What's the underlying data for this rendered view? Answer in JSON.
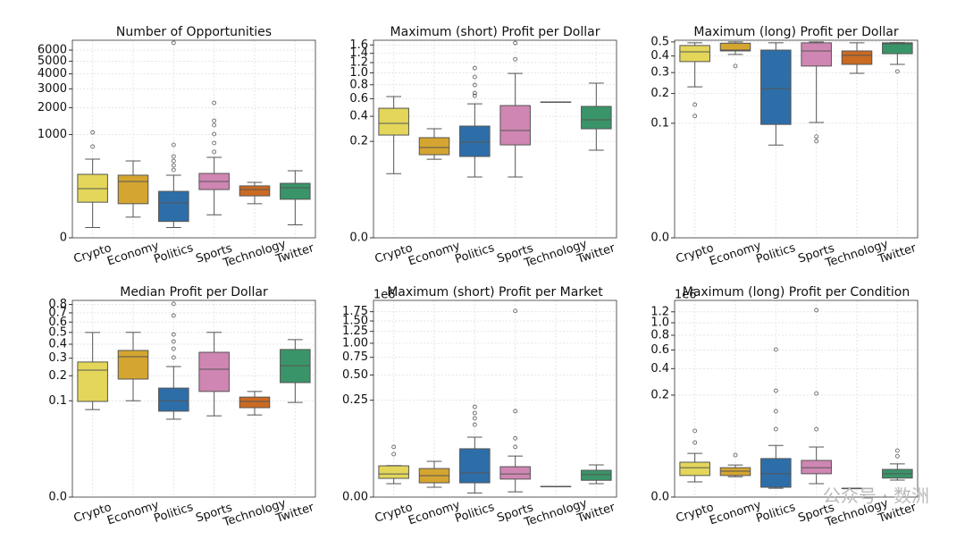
{
  "chart_data": [
    {
      "type": "box",
      "title": "Number of Opportunities",
      "yscale": "cuberoot",
      "grid": true,
      "categories": [
        "Crypto",
        "Economy",
        "Politics",
        "Sports",
        "Technology",
        "Twitter"
      ],
      "colors": [
        "#e3d65a",
        "#d4a530",
        "#2d6ea8",
        "#cf86b2",
        "#cb6a22",
        "#3a9469"
      ],
      "ylim": [
        0,
        7000
      ],
      "yticks": [
        0,
        1000,
        2000,
        3000,
        4000,
        5000,
        6000
      ],
      "boxes": [
        {
          "whislo": 1,
          "q1": 41,
          "med": 108,
          "q3": 232,
          "whishi": 442,
          "fliers": [
            689,
            1064
          ]
        },
        {
          "whislo": 8,
          "q1": 36,
          "med": 162,
          "q3": 223,
          "whishi": 413,
          "fliers": []
        },
        {
          "whislo": 1,
          "q1": 4,
          "med": 39,
          "q3": 91,
          "whishi": 223,
          "fliers": [
            285,
            345,
            413,
            489,
            729,
            6730
          ]
        },
        {
          "whislo": 11,
          "q1": 102,
          "med": 162,
          "q3": 242,
          "whishi": 473,
          "fliers": [
            576,
            773,
            1013,
            1298,
            1459,
            2233
          ]
        },
        {
          "whislo": 36,
          "q1": 67,
          "med": 102,
          "q3": 127,
          "whishi": 155,
          "fliers": []
        },
        {
          "whislo": 2,
          "q1": 52,
          "med": 114,
          "q3": 147,
          "whishi": 274,
          "fliers": []
        }
      ]
    },
    {
      "type": "box",
      "title": "Maximum (short) Profit per Dollar",
      "yscale": "cuberoot",
      "grid": true,
      "categories": [
        "Crypto",
        "Economy",
        "Politics",
        "Sports",
        "Technology",
        "Twitter"
      ],
      "colors": [
        "#e3d65a",
        "#d4a530",
        "#2d6ea8",
        "#cf86b2",
        "#cb6a22",
        "#3a9469"
      ],
      "ylim": [
        0,
        1.72
      ],
      "yticks": [
        {
          "value": 0,
          "label": "0.0"
        },
        0.2,
        0.4,
        0.6,
        0.8,
        {
          "value": 1,
          "label": "1.0"
        },
        1.2,
        1.4,
        1.6
      ],
      "boxes": [
        {
          "whislo": 0.059,
          "q1": 0.242,
          "med": 0.334,
          "q3": 0.485,
          "whishi": 0.628,
          "fliers": []
        },
        {
          "whislo": 0.108,
          "q1": 0.128,
          "med": 0.164,
          "q3": 0.224,
          "whishi": 0.289,
          "fliers": []
        },
        {
          "whislo": 0.05,
          "q1": 0.12,
          "med": 0.195,
          "q3": 0.311,
          "whishi": 0.537,
          "fliers": [
            0.64,
            0.677,
            0.796,
            0.929,
            1.09
          ]
        },
        {
          "whislo": 0.05,
          "q1": 0.179,
          "med": 0.275,
          "q3": 0.516,
          "whishi": 0.991,
          "fliers": [
            1.27,
            1.65
          ]
        },
        {
          "whislo": 0.559,
          "q1": 0.559,
          "med": 0.559,
          "q3": 0.559,
          "whishi": 0.559,
          "fliers": []
        },
        {
          "whislo": 0.15,
          "q1": 0.289,
          "med": 0.366,
          "q3": 0.506,
          "whishi": 0.825,
          "fliers": []
        }
      ]
    },
    {
      "type": "box",
      "title": "Maximum (long) Profit per Dollar",
      "yscale": "cuberoot",
      "grid": true,
      "categories": [
        "Crypto",
        "Economy",
        "Politics",
        "Sports",
        "Technology",
        "Twitter"
      ],
      "colors": [
        "#e3d65a",
        "#d4a530",
        "#2d6ea8",
        "#cf86b2",
        "#cb6a22",
        "#3a9469"
      ],
      "ylim": [
        0,
        0.513
      ],
      "yticks": [
        {
          "value": 0,
          "label": "0.0"
        },
        0.1,
        0.2,
        0.3,
        0.4,
        0.5
      ],
      "boxes": [
        {
          "whislo": 0.229,
          "q1": 0.364,
          "med": 0.428,
          "q3": 0.473,
          "whishi": 0.493,
          "fliers": [
            0.157,
            0.12
          ]
        },
        {
          "whislo": 0.41,
          "q1": 0.434,
          "med": 0.44,
          "q3": 0.49,
          "whishi": 0.5,
          "fliers": [
            0.337
          ]
        },
        {
          "whislo": 0.053,
          "q1": 0.097,
          "med": 0.221,
          "q3": 0.44,
          "whishi": 0.493,
          "fliers": []
        },
        {
          "whislo": 0.102,
          "q1": 0.337,
          "med": 0.434,
          "q3": 0.493,
          "whishi": 0.5,
          "fliers": [
            0.069,
            0.06
          ]
        },
        {
          "whislo": 0.296,
          "q1": 0.347,
          "med": 0.404,
          "q3": 0.434,
          "whishi": 0.493,
          "fliers": []
        },
        {
          "whislo": 0.347,
          "q1": 0.415,
          "med": 0.486,
          "q3": 0.493,
          "whishi": 0.495,
          "fliers": [
            0.306
          ]
        }
      ]
    },
    {
      "type": "box",
      "title": "Median Profit per Dollar",
      "yscale": "cuberoot",
      "grid": true,
      "categories": [
        "Crypto",
        "Economy",
        "Politics",
        "Sports",
        "Technology",
        "Twitter"
      ],
      "colors": [
        "#e3d65a",
        "#d4a530",
        "#2d6ea8",
        "#cf86b2",
        "#cb6a22",
        "#3a9469"
      ],
      "ylim": [
        0,
        0.852
      ],
      "yticks": [
        {
          "value": 0,
          "label": "0.0"
        },
        0.1,
        0.2,
        0.3,
        0.4,
        0.5,
        0.6,
        0.7,
        0.8
      ],
      "boxes": [
        {
          "whislo": 0.075,
          "q1": 0.098,
          "med": 0.229,
          "q3": 0.276,
          "whishi": 0.499,
          "fliers": []
        },
        {
          "whislo": 0.1,
          "q1": 0.184,
          "med": 0.31,
          "q3": 0.353,
          "whishi": 0.5,
          "fliers": []
        },
        {
          "whislo": 0.053,
          "q1": 0.071,
          "med": 0.1,
          "q3": 0.145,
          "whishi": 0.249,
          "fliers": [
            0.304,
            0.366,
            0.422,
            0.482,
            0.67,
            0.807
          ]
        },
        {
          "whislo": 0.06,
          "q1": 0.132,
          "med": 0.234,
          "q3": 0.34,
          "whishi": 0.5,
          "fliers": []
        },
        {
          "whislo": 0.062,
          "q1": 0.08,
          "med": 0.098,
          "q3": 0.112,
          "whishi": 0.132,
          "fliers": []
        },
        {
          "whislo": 0.095,
          "q1": 0.168,
          "med": 0.254,
          "q3": 0.36,
          "whishi": 0.437,
          "fliers": []
        }
      ]
    },
    {
      "type": "box",
      "title": "Maximum (short) Profit per Market",
      "offset_label": "1e6",
      "yscale": "cuberoot",
      "grid": true,
      "categories": [
        "Crypto",
        "Economy",
        "Politics",
        "Sports",
        "Technology",
        "Twitter"
      ],
      "colors": [
        "#e3d65a",
        "#d4a530",
        "#2d6ea8",
        "#cf86b2",
        "#cb6a22",
        "#3a9469"
      ],
      "ylim": [
        0,
        2.09
      ],
      "yticks": [
        {
          "value": 0,
          "label": "0.00"
        },
        0.25,
        {
          "value": 0.5,
          "label": "0.50"
        },
        0.75,
        {
          "value": 1,
          "label": "1.00"
        },
        1.25,
        {
          "value": 1.5,
          "label": "1.50"
        },
        1.75
      ],
      "boxes": [
        {
          "whislo": 0.00066,
          "q1": 0.0018,
          "med": 0.0034,
          "q3": 0.0084,
          "whishi": 0.0086,
          "fliers": [
            0.0217,
            0.0346
          ]
        },
        {
          "whislo": 0.00026,
          "q1": 0.0008,
          "med": 0.0027,
          "q3": 0.0064,
          "whishi": 0.0126,
          "fliers": []
        },
        {
          "whislo": 2e-05,
          "q1": 0.0008,
          "med": 0.0039,
          "q3": 0.031,
          "whishi": 0.059,
          "fliers": [
            0.104,
            0.134,
            0.163,
            0.202
          ]
        },
        {
          "whislo": 4e-05,
          "q1": 0.0016,
          "med": 0.0034,
          "q3": 0.0077,
          "whishi": 0.019,
          "fliers": [
            0.0346,
            0.056,
            0.174,
            1.77
          ]
        },
        {
          "whislo": 0.00034,
          "q1": 0.00034,
          "med": 0.00034,
          "q3": 0.00034,
          "whishi": 0.00034,
          "fliers": []
        },
        {
          "whislo": 0.00066,
          "q1": 0.0013,
          "med": 0.0031,
          "q3": 0.0053,
          "whishi": 0.0092,
          "fliers": []
        }
      ]
    },
    {
      "type": "box",
      "title": "Maximum (long) Profit per Condition",
      "offset_label": "1e6",
      "yscale": "cuberoot",
      "grid": true,
      "categories": [
        "Crypto",
        "Economy",
        "Politics",
        "Sports",
        "Technology",
        "Twitter"
      ],
      "colors": [
        "#e3d65a",
        "#d4a530",
        "#2d6ea8",
        "#cf86b2",
        "#cb6a22",
        "#3a9469"
      ],
      "ylim": [
        0,
        1.436
      ],
      "yticks": [
        {
          "value": 0,
          "label": "0.0"
        },
        0.2,
        0.4,
        0.6,
        0.8,
        {
          "value": 1,
          "label": "1.0"
        },
        1.2
      ],
      "boxes": [
        {
          "whislo": 0.00066,
          "q1": 0.0019,
          "med": 0.0048,
          "q3": 0.008,
          "whishi": 0.0158,
          "fliers": [
            0.0306,
            0.055
          ]
        },
        {
          "whislo": 0.0016,
          "q1": 0.0019,
          "med": 0.0033,
          "q3": 0.0048,
          "whishi": 0.0062,
          "fliers": [
            0.014
          ]
        },
        {
          "whislo": 0.00013,
          "q1": 0.00018,
          "med": 0.0024,
          "q3": 0.0108,
          "whishi": 0.026,
          "fliers": [
            0.059,
            0.119,
            0.227,
            0.606
          ]
        },
        {
          "whislo": 0.00046,
          "q1": 0.0024,
          "med": 0.0048,
          "q3": 0.0093,
          "whishi": 0.0237,
          "fliers": [
            0.059,
            0.21,
            1.232
          ]
        },
        {
          "whislo": 0.00013,
          "q1": 0.00013,
          "med": 0.00013,
          "q3": 0.00013,
          "whishi": 0.00013,
          "fliers": []
        },
        {
          "whislo": 0.00092,
          "q1": 0.0013,
          "med": 0.0024,
          "q3": 0.004,
          "whishi": 0.0069,
          "fliers": [
            0.013,
            0.019
          ]
        }
      ]
    }
  ],
  "watermark": "公众号 · 数洲"
}
